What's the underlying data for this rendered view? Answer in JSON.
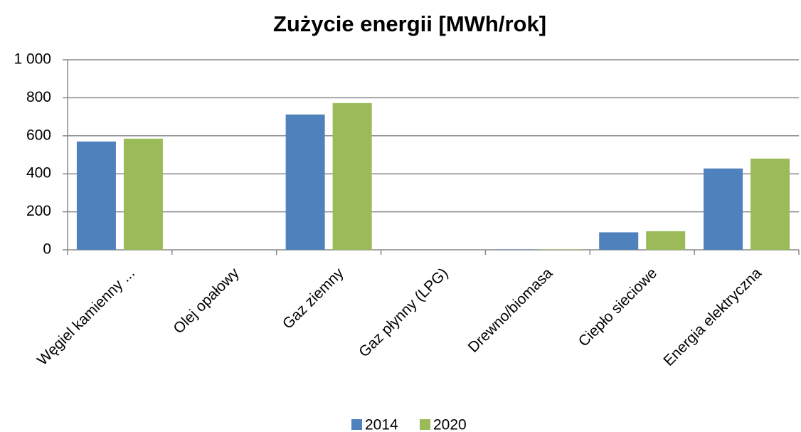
{
  "chart_data": {
    "type": "bar",
    "title": "Zużycie energii [MWh/rok]",
    "categories": [
      "Węgiel kamienny ...",
      "Olej opałowy",
      "Gaz ziemny",
      "Gaz płynny (LPG)",
      "Drewno/biomasa",
      "Ciepło sieciowe",
      "Energia elektryczna"
    ],
    "series": [
      {
        "name": "2014",
        "color": "#4f81bd",
        "values": [
          570,
          0,
          712,
          0,
          2,
          92,
          428
        ]
      },
      {
        "name": "2020",
        "color": "#9bbb59",
        "values": [
          585,
          0,
          772,
          0,
          2,
          98,
          480
        ]
      }
    ],
    "ylim": [
      0,
      1000
    ],
    "yticks": [
      0,
      200,
      400,
      600,
      800,
      {
        "value": 1000,
        "label": "1 000"
      }
    ],
    "grid": true,
    "legend": "bottom"
  }
}
